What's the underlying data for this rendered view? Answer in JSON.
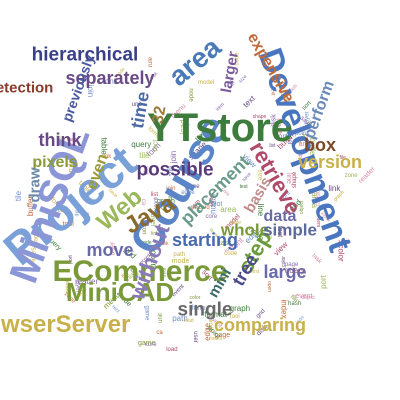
{
  "colors": {
    "background": "#ffffff",
    "palette": [
      "#6f8fc7",
      "#c8b14a",
      "#6a4a86",
      "#3e7c3e",
      "#b04a6a",
      "#7a9a3a",
      "#c06a3a",
      "#8a6ab0",
      "#d88aa8",
      "#9ab85a"
    ]
  },
  "words": [
    {
      "text": "Project",
      "color": "#7aa0d8",
      "rotate": -40
    },
    {
      "text": "Course",
      "color": "#5a85c8",
      "rotate": -60
    },
    {
      "text": "MiniSQL",
      "color": "#8b96d6",
      "rotate": -70
    },
    {
      "text": "YTstore",
      "color": "#3e7c3e",
      "rotate": 0
    },
    {
      "text": "Development",
      "color": "#4a76c0",
      "rotate": 70
    },
    {
      "text": "ECommerce",
      "color": "#7a9a3a",
      "rotate": 0
    },
    {
      "text": "MiniCAD",
      "color": "#7a9a3a",
      "rotate": 0
    },
    {
      "text": "BrowserServer",
      "color": "#c8b14a",
      "rotate": 0
    },
    {
      "text": "hierarchical",
      "color": "#3a3f8a",
      "rotate": 0
    },
    {
      "text": "separately",
      "color": "#6a4a86",
      "rotate": 0
    },
    {
      "text": "detection",
      "color": "#8a3a2a",
      "rotate": 0
    },
    {
      "text": "previously",
      "color": "#4a5aa0",
      "rotate": -70
    },
    {
      "text": "area",
      "color": "#4a7ab8",
      "rotate": -40
    },
    {
      "text": "larger",
      "color": "#7a5a9a",
      "rotate": -80
    },
    {
      "text": "retrieve",
      "color": "#b04a6a",
      "rotate": 60
    },
    {
      "text": "expensive",
      "color": "#c06a3a",
      "rotate": 60
    },
    {
      "text": "perform",
      "color": "#6a8ab8",
      "rotate": -70
    },
    {
      "text": "time",
      "color": "#4a6aa8",
      "rotate": -80
    },
    {
      "text": "32",
      "color": "#9a7a3a",
      "rotate": -80
    },
    {
      "text": "think",
      "color": "#6a4a86",
      "rotate": 0
    },
    {
      "text": "pixels",
      "color": "#8a9a3a",
      "rotate": 0
    },
    {
      "text": "possible",
      "color": "#5a3a7a",
      "rotate": 0
    },
    {
      "text": "placement",
      "color": "#6a9a8a",
      "rotate": -45
    },
    {
      "text": "version",
      "color": "#c8b14a",
      "rotate": 0
    },
    {
      "text": "box",
      "color": "#7a4a2a",
      "rotate": 0
    },
    {
      "text": "even",
      "color": "#9a9a3a",
      "rotate": -70
    },
    {
      "text": "draw",
      "color": "#6a8aa8",
      "rotate": -90
    },
    {
      "text": "Web",
      "color": "#9ab85a",
      "rotate": -40
    },
    {
      "text": "Java",
      "color": "#8a6a2a",
      "rotate": -30
    },
    {
      "text": "move",
      "color": "#6a6aa8",
      "rotate": 0
    },
    {
      "text": "without",
      "color": "#8a7ab8",
      "rotate": -70
    },
    {
      "text": "starting",
      "color": "#4a6ab0",
      "rotate": 0
    },
    {
      "text": "whole",
      "color": "#7a9a3a",
      "rotate": 0
    },
    {
      "text": "step",
      "color": "#6a9a3a",
      "rotate": -60
    },
    {
      "text": "tree",
      "color": "#4a4a8a",
      "rotate": -60
    },
    {
      "text": "large",
      "color": "#6a6aa8",
      "rotate": 0
    },
    {
      "text": "simple",
      "color": "#5a6a9a",
      "rotate": 0
    },
    {
      "text": "data",
      "color": "#6a6aa8",
      "rotate": 0
    },
    {
      "text": "mini",
      "color": "#3a6a6a",
      "rotate": -60
    },
    {
      "text": "basis",
      "color": "#c08a8a",
      "rotate": -60
    },
    {
      "text": "single",
      "color": "#6a6a6a",
      "rotate": 0
    },
    {
      "text": "comparing",
      "color": "#c8b14a",
      "rotate": 0
    }
  ],
  "small_words": [
    "ca",
    "lines",
    "format",
    "model",
    "shape",
    "reader",
    "object",
    "index",
    "record",
    "query",
    "table",
    "buffer",
    "layer",
    "graph",
    "point",
    "color",
    "event",
    "file",
    "rule",
    "node",
    "list",
    "map",
    "view",
    "game",
    "test",
    "user",
    "page",
    "item",
    "zone",
    "link",
    "edge",
    "plot",
    "line",
    "grid",
    "text",
    "code",
    "task",
    "form",
    "menu",
    "font",
    "tool",
    "path",
    "icon",
    "size",
    "mode",
    "disk",
    "port",
    "core",
    "unit",
    "load",
    "save",
    "open",
    "join",
    "sort",
    "hash",
    "tile",
    "rect",
    "area"
  ]
}
